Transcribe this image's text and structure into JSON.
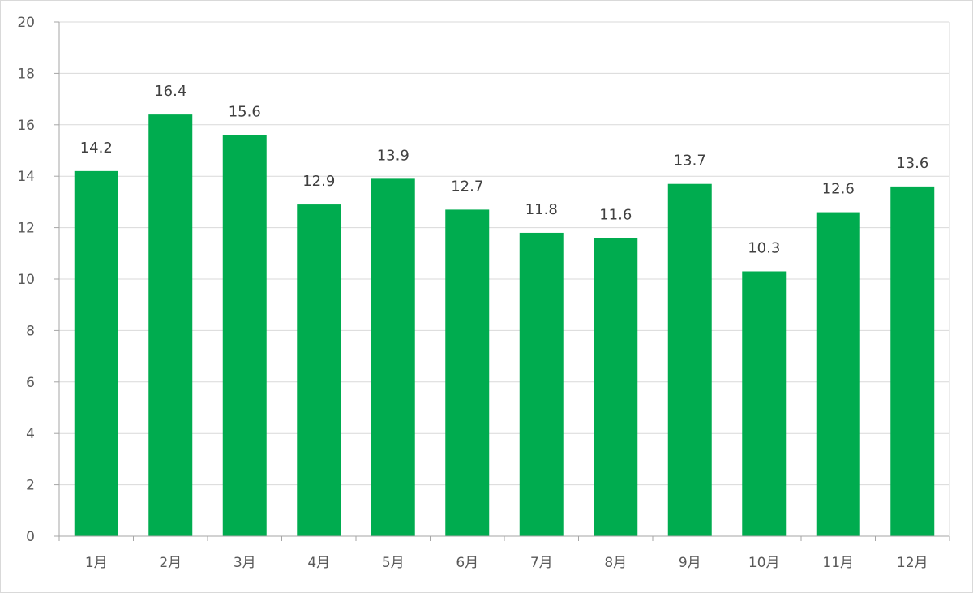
{
  "chart_data": {
    "type": "bar",
    "categories": [
      "1月",
      "2月",
      "3月",
      "4月",
      "5月",
      "6月",
      "7月",
      "8月",
      "9月",
      "10月",
      "11月",
      "12月"
    ],
    "values": [
      14.2,
      16.4,
      15.6,
      12.9,
      13.9,
      12.7,
      11.8,
      11.6,
      13.7,
      10.3,
      12.6,
      13.6
    ],
    "data_labels": [
      "14.2",
      "16.4",
      "15.6",
      "12.9",
      "13.9",
      "12.7",
      "11.8",
      "11.6",
      "13.7",
      "10.3",
      "12.6",
      "13.6"
    ],
    "y_ticks": [
      "0",
      "2",
      "4",
      "6",
      "8",
      "10",
      "12",
      "14",
      "16",
      "18",
      "20"
    ],
    "ylim": [
      0,
      20
    ],
    "title": "",
    "xlabel": "",
    "ylabel": "",
    "grid": true,
    "legend": "none",
    "colors": {
      "bar": "#00AC4F",
      "grid": "#d9d9d9",
      "axis": "#a6a6a6",
      "text": "#595959"
    }
  }
}
